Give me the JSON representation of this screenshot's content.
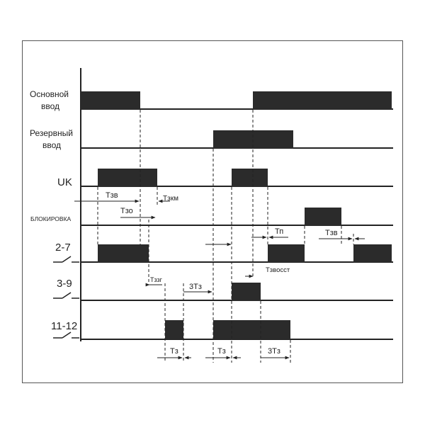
{
  "rows": {
    "main_input": [
      "Основной",
      "ввод"
    ],
    "reserve_input": [
      "Резервный",
      "ввод"
    ],
    "uk": "UK",
    "blocking": "БЛОКИРОВКА",
    "contact_2_7": "2-7",
    "contact_3_9": "3-9",
    "contact_11_12": "11-12"
  },
  "intervals": {
    "t_zv_1": "Тзв",
    "t_zkm": "Тзкм",
    "t_zo": "Тзо",
    "t_p": "Тп",
    "t_zv_2": "Тзв",
    "t_zzg": "Тззг",
    "three_t_z_1": "3Тз",
    "t_zvosst": "Тзвосст",
    "t_z_1": "Тз",
    "t_z_2": "Тз",
    "three_t_z_2": "3Тз"
  },
  "colors": {
    "pulse": "#2b2b2b",
    "line": "#222222",
    "frame": "#555555"
  }
}
